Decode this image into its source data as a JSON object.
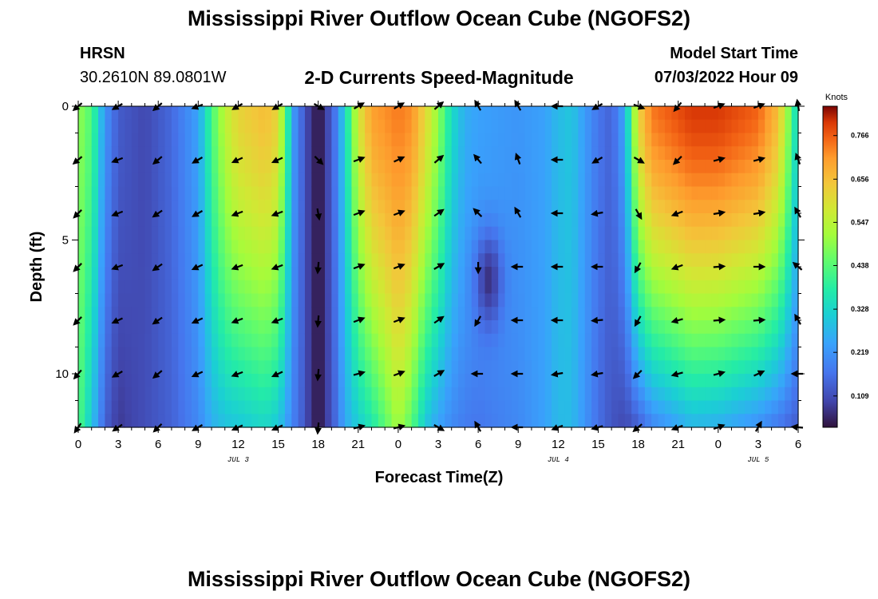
{
  "header": {
    "title": "Mississippi River Outflow Ocean Cube (NGOFS2)",
    "station_id": "HRSN",
    "station_coords": "30.2610N  89.0801W",
    "subtitle": "2-D Currents Speed-Magnitude",
    "model_start_label": "Model Start Time",
    "model_start_value": "07/03/2022 Hour 09"
  },
  "footer": {
    "title": "Mississippi River Outflow Ocean Cube (NGOFS2)"
  },
  "chart_data": {
    "type": "heatmap",
    "title": "2-D Currents Speed-Magnitude",
    "xlabel": "Forecast Time(Z)",
    "ylabel": "Depth (ft)",
    "colorbar_label": "Knots",
    "colorbar_ticks": [
      "0.766",
      "0.656",
      "0.547",
      "0.438",
      "0.328",
      "0.219",
      "0.109"
    ],
    "colorbar_range": [
      0.03,
      0.84
    ],
    "x_hours_range": [
      0,
      54
    ],
    "x_tick_hours": [
      0,
      3,
      6,
      9,
      12,
      15,
      18,
      21,
      24,
      27,
      30,
      33,
      36,
      39,
      42,
      45,
      48,
      51,
      54
    ],
    "x_tick_labels": [
      "0",
      "3",
      "6",
      "9",
      "12",
      "15",
      "18",
      "21",
      "0",
      "3",
      "6",
      "9",
      "12",
      "15",
      "18",
      "21",
      "0",
      "3",
      "6"
    ],
    "date_labels": [
      {
        "label": "JUL 3",
        "hour": 12
      },
      {
        "label": "JUL 4",
        "hour": 36
      },
      {
        "label": "JUL 5",
        "hour": 51
      }
    ],
    "y_range_ft": [
      0,
      12
    ],
    "y_tick_values": [
      0,
      5,
      10
    ],
    "y_tick_labels": [
      "0",
      "5",
      "10"
    ],
    "speed_profile": [
      {
        "hour": 0,
        "surface": 0.5,
        "bottom": 0.44
      },
      {
        "hour": 1,
        "surface": 0.43,
        "bottom": 0.3
      },
      {
        "hour": 2,
        "surface": 0.22,
        "bottom": 0.14
      },
      {
        "hour": 3,
        "surface": 0.13,
        "bottom": 0.08
      },
      {
        "hour": 5,
        "surface": 0.1,
        "bottom": 0.11
      },
      {
        "hour": 7,
        "surface": 0.15,
        "bottom": 0.14
      },
      {
        "hour": 9,
        "surface": 0.24,
        "bottom": 0.2
      },
      {
        "hour": 10,
        "surface": 0.42,
        "bottom": 0.26
      },
      {
        "hour": 11,
        "surface": 0.55,
        "bottom": 0.29
      },
      {
        "hour": 12,
        "surface": 0.62,
        "bottom": 0.3
      },
      {
        "hour": 14,
        "surface": 0.66,
        "bottom": 0.33
      },
      {
        "hour": 15,
        "surface": 0.62,
        "bottom": 0.3
      },
      {
        "hour": 15.5,
        "surface": 0.45,
        "bottom": 0.25
      },
      {
        "hour": 16.2,
        "surface": 0.22,
        "bottom": 0.18
      },
      {
        "hour": 17,
        "surface": 0.12,
        "bottom": 0.12
      },
      {
        "hour": 17.6,
        "surface": 0.05,
        "bottom": 0.05
      },
      {
        "hour": 18.3,
        "surface": 0.05,
        "bottom": 0.05
      },
      {
        "hour": 19.2,
        "surface": 0.16,
        "bottom": 0.14
      },
      {
        "hour": 20,
        "surface": 0.32,
        "bottom": 0.25
      },
      {
        "hour": 21,
        "surface": 0.58,
        "bottom": 0.31
      },
      {
        "hour": 22,
        "surface": 0.7,
        "bottom": 0.36
      },
      {
        "hour": 24,
        "surface": 0.74,
        "bottom": 0.52
      },
      {
        "hour": 25,
        "surface": 0.72,
        "bottom": 0.44
      },
      {
        "hour": 26,
        "surface": 0.62,
        "bottom": 0.3
      },
      {
        "hour": 27,
        "surface": 0.5,
        "bottom": 0.24
      },
      {
        "hour": 28,
        "surface": 0.34,
        "bottom": 0.2
      },
      {
        "hour": 29,
        "surface": 0.26,
        "bottom": 0.18
      },
      {
        "hour": 30,
        "surface": 0.24,
        "bottom": 0.17
      },
      {
        "hour": 33,
        "surface": 0.22,
        "bottom": 0.2
      },
      {
        "hour": 35,
        "surface": 0.24,
        "bottom": 0.24
      },
      {
        "hour": 36,
        "surface": 0.28,
        "bottom": 0.28
      },
      {
        "hour": 37,
        "surface": 0.3,
        "bottom": 0.28
      },
      {
        "hour": 38,
        "surface": 0.23,
        "bottom": 0.22
      },
      {
        "hour": 39,
        "surface": 0.17,
        "bottom": 0.16
      },
      {
        "hour": 40,
        "surface": 0.14,
        "bottom": 0.12
      },
      {
        "hour": 41,
        "surface": 0.25,
        "bottom": 0.1
      },
      {
        "hour": 42,
        "surface": 0.62,
        "bottom": 0.13
      },
      {
        "hour": 43,
        "surface": 0.74,
        "bottom": 0.19
      },
      {
        "hour": 46,
        "surface": 0.8,
        "bottom": 0.27
      },
      {
        "hour": 48,
        "surface": 0.8,
        "bottom": 0.26
      },
      {
        "hour": 51,
        "surface": 0.76,
        "bottom": 0.21
      },
      {
        "hour": 52.5,
        "surface": 0.66,
        "bottom": 0.17
      },
      {
        "hour": 53.5,
        "surface": 0.44,
        "bottom": 0.14
      },
      {
        "hour": 54,
        "surface": 0.3,
        "bottom": 0.13
      }
    ],
    "low_speed_pocket": {
      "hour": 30.8,
      "depth_ft": 6.5,
      "speed": 0.07
    },
    "vector_hours": [
      0,
      3,
      6,
      9,
      12,
      15,
      18,
      21,
      24,
      27,
      30,
      33,
      36,
      39,
      42,
      45,
      48,
      51,
      54
    ],
    "vector_depths_ft": [
      0,
      2,
      4,
      6,
      8,
      10,
      12
    ],
    "vector_directions_deg": [
      [
        220,
        220,
        225,
        225,
        225,
        230,
        235
      ],
      [
        210,
        200,
        200,
        200,
        205,
        210,
        215
      ],
      [
        220,
        220,
        215,
        215,
        215,
        220,
        225
      ],
      [
        200,
        210,
        210,
        205,
        205,
        205,
        210
      ],
      [
        210,
        205,
        200,
        200,
        200,
        200,
        205
      ],
      [
        210,
        205,
        200,
        200,
        200,
        205,
        205
      ],
      [
        330,
        315,
        280,
        265,
        265,
        265,
        265
      ],
      [
        30,
        20,
        20,
        20,
        20,
        15,
        15
      ],
      [
        30,
        25,
        20,
        20,
        20,
        20,
        15
      ],
      [
        40,
        40,
        35,
        30,
        35,
        30,
        330
      ],
      [
        120,
        130,
        135,
        270,
        240,
        180,
        120
      ],
      [
        120,
        110,
        120,
        180,
        180,
        180,
        180
      ],
      [
        180,
        180,
        180,
        180,
        180,
        190,
        200
      ],
      [
        210,
        210,
        190,
        180,
        185,
        190,
        195
      ],
      [
        340,
        330,
        300,
        240,
        240,
        225,
        220
      ],
      [
        230,
        225,
        200,
        200,
        195,
        195,
        200
      ],
      [
        20,
        15,
        10,
        5,
        5,
        15,
        20
      ],
      [
        20,
        15,
        10,
        0,
        5,
        25,
        60
      ],
      [
        100,
        110,
        120,
        140,
        120,
        180,
        175
      ]
    ]
  }
}
